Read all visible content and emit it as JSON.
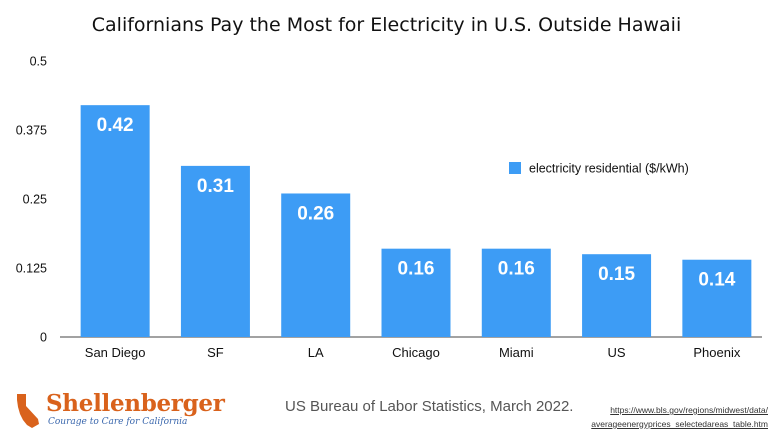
{
  "chart_data": {
    "type": "bar",
    "title": "Californians Pay the Most for Electricity in U.S. Outside Hawaii",
    "categories": [
      "San Diego",
      "SF",
      "LA",
      "Chicago",
      "Miami",
      "US",
      "Phoenix"
    ],
    "series": [
      {
        "name": "electricity residential ($/kWh)",
        "values": [
          0.42,
          0.31,
          0.26,
          0.16,
          0.16,
          0.15,
          0.14
        ],
        "labels": [
          "0.42",
          "0.31",
          "0.26",
          "0.16",
          "0.16",
          "0.15",
          "0.14"
        ],
        "color": "#3d9cf5"
      }
    ],
    "yticks": [
      "0",
      "0.125",
      "0.25",
      "0.375",
      "0.5"
    ],
    "ylim": [
      0,
      0.5
    ],
    "grid": false,
    "legend": "right"
  },
  "footer": {
    "logo_word": "Shellenberger",
    "logo_tagline": "Courage to Care for California",
    "source": "US Bureau of Labor Statistics, March 2022.",
    "url_line1": "https://www.bls.gov/regions/midwest/data/",
    "url_line2": "averageenergyprices_selectedareas_table.htm"
  },
  "colors": {
    "bar": "#3d9cf5",
    "logo_orange": "#d9621c",
    "logo_blue": "#3a67ad"
  }
}
